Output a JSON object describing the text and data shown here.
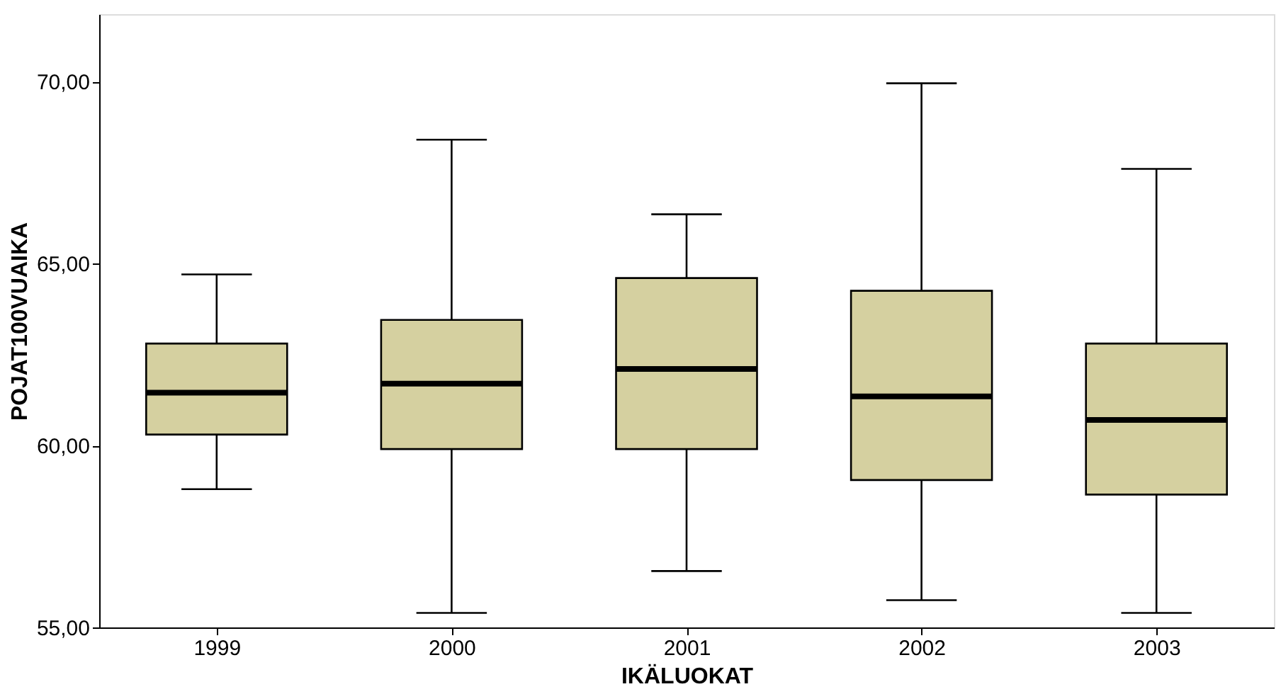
{
  "chart_data": {
    "type": "box",
    "xlabel": "IKÄLUOKAT",
    "ylabel": "POJAT100VUAIKA",
    "categories": [
      "1999",
      "2000",
      "2001",
      "2002",
      "2003"
    ],
    "color": "#d5d0a0",
    "boxes": [
      {
        "low": 58.8,
        "q1": 60.3,
        "median": 61.45,
        "q3": 62.8,
        "high": 64.7
      },
      {
        "low": 55.4,
        "q1": 59.9,
        "median": 61.7,
        "q3": 63.45,
        "high": 68.4
      },
      {
        "low": 56.55,
        "q1": 59.9,
        "median": 62.1,
        "q3": 64.6,
        "high": 66.35
      },
      {
        "low": 55.75,
        "q1": 59.05,
        "median": 61.35,
        "q3": 64.25,
        "high": 69.95
      },
      {
        "low": 55.4,
        "q1": 58.65,
        "median": 60.7,
        "q3": 62.8,
        "high": 67.6
      }
    ],
    "ylim": [
      55,
      71.85
    ],
    "yticks": [
      {
        "value": 55,
        "label": "55,00"
      },
      {
        "value": 60,
        "label": "60,00"
      },
      {
        "value": 65,
        "label": "65,00"
      },
      {
        "value": 70,
        "label": "70,00"
      }
    ],
    "grid": false
  }
}
